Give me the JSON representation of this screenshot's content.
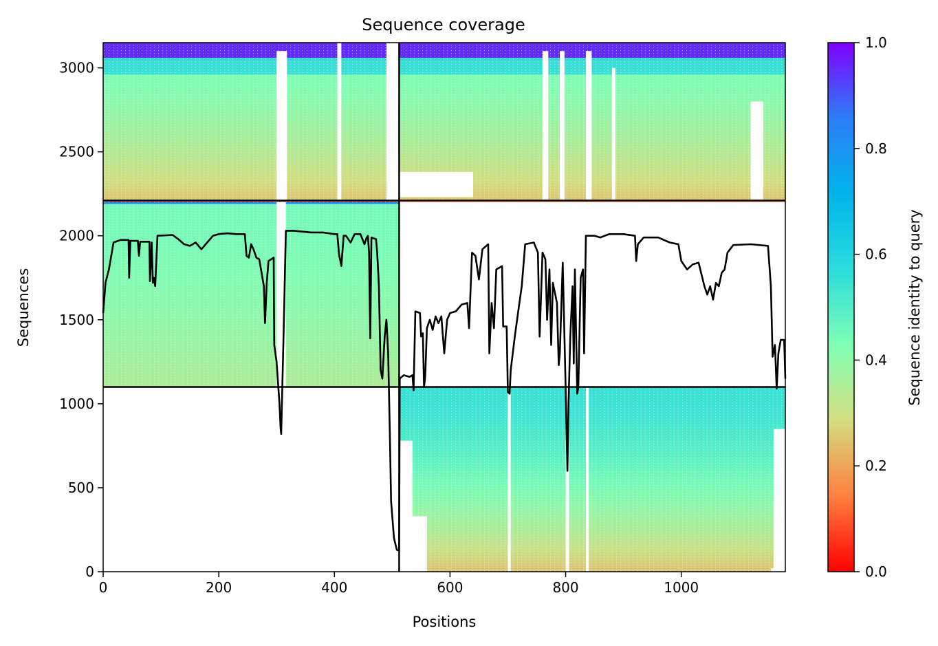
{
  "chart_data": {
    "type": "heatmap",
    "title": "Sequence coverage",
    "xlabel": "Positions",
    "ylabel": "Sequences",
    "xlim": [
      0,
      1180
    ],
    "ylim": [
      0,
      3150
    ],
    "x_ticks": [
      0,
      200,
      400,
      600,
      800,
      1000
    ],
    "y_ticks": [
      0,
      500,
      1000,
      1500,
      2000,
      2500,
      3000
    ],
    "grid": false,
    "colorbar": {
      "label": "Sequence identity to query",
      "range": [
        0.0,
        1.0
      ],
      "ticks": [
        0.0,
        0.2,
        0.4,
        0.6,
        0.8,
        1.0
      ],
      "colormap": "rainbow_r",
      "stops": [
        "#ff0000",
        "#ff8040",
        "#d4dd80",
        "#80ffb4",
        "#2adddd",
        "#00b4eb",
        "#2c7ef7",
        "#8000ff"
      ]
    },
    "boundaries": {
      "chain_split_position": 512,
      "block_split_sequences": [
        1100,
        2210
      ]
    },
    "blocks": [
      {
        "name": "paired",
        "x": [
          0,
          1180
        ],
        "y": [
          2210,
          3150
        ],
        "identity_top": 0.95,
        "identity_bottom": 0.25
      },
      {
        "name": "chain_A_unpaired",
        "x": [
          0,
          512
        ],
        "y": [
          1100,
          2210
        ],
        "identity_top": 0.45,
        "identity_bottom": 0.35
      },
      {
        "name": "chain_B_unpaired",
        "x": [
          512,
          1180
        ],
        "y": [
          0,
          1100
        ],
        "identity_top": 0.55,
        "identity_bottom": 0.25
      }
    ],
    "coverage_line": {
      "color": "#000000",
      "points": [
        [
          0,
          1540
        ],
        [
          4,
          1720
        ],
        [
          10,
          1800
        ],
        [
          18,
          1960
        ],
        [
          30,
          1975
        ],
        [
          44,
          1975
        ],
        [
          45,
          1750
        ],
        [
          47,
          1970
        ],
        [
          60,
          1970
        ],
        [
          62,
          1880
        ],
        [
          64,
          1965
        ],
        [
          80,
          1965
        ],
        [
          81,
          1730
        ],
        [
          84,
          1960
        ],
        [
          86,
          1720
        ],
        [
          88,
          1750
        ],
        [
          90,
          1700
        ],
        [
          94,
          2000
        ],
        [
          120,
          2005
        ],
        [
          130,
          1980
        ],
        [
          140,
          1950
        ],
        [
          150,
          1940
        ],
        [
          160,
          1960
        ],
        [
          170,
          1920
        ],
        [
          180,
          1960
        ],
        [
          190,
          2000
        ],
        [
          200,
          2010
        ],
        [
          215,
          2015
        ],
        [
          230,
          2010
        ],
        [
          245,
          2010
        ],
        [
          248,
          1880
        ],
        [
          252,
          1870
        ],
        [
          256,
          1950
        ],
        [
          260,
          1920
        ],
        [
          265,
          1870
        ],
        [
          270,
          1860
        ],
        [
          278,
          1700
        ],
        [
          280,
          1480
        ],
        [
          283,
          1720
        ],
        [
          286,
          1850
        ],
        [
          295,
          1870
        ],
        [
          296,
          1350
        ],
        [
          300,
          1250
        ],
        [
          305,
          1000
        ],
        [
          307,
          850
        ],
        [
          308,
          820
        ],
        [
          312,
          1400
        ],
        [
          316,
          2030
        ],
        [
          330,
          2030
        ],
        [
          360,
          2020
        ],
        [
          380,
          2020
        ],
        [
          400,
          2010
        ],
        [
          405,
          2010
        ],
        [
          408,
          1890
        ],
        [
          412,
          1820
        ],
        [
          416,
          2000
        ],
        [
          420,
          2000
        ],
        [
          428,
          1960
        ],
        [
          435,
          2010
        ],
        [
          445,
          2010
        ],
        [
          452,
          1950
        ],
        [
          456,
          1990
        ],
        [
          458,
          2000
        ],
        [
          460,
          1900
        ],
        [
          462,
          1390
        ],
        [
          464,
          1990
        ],
        [
          472,
          1980
        ],
        [
          474,
          1900
        ],
        [
          477,
          1700
        ],
        [
          480,
          1200
        ],
        [
          483,
          1150
        ],
        [
          487,
          1400
        ],
        [
          490,
          1500
        ],
        [
          493,
          1300
        ],
        [
          496,
          800
        ],
        [
          498,
          420
        ],
        [
          503,
          200
        ],
        [
          508,
          130
        ],
        [
          512,
          125
        ],
        [
          513,
          1150
        ],
        [
          520,
          1170
        ],
        [
          530,
          1160
        ],
        [
          535,
          1170
        ],
        [
          537,
          1080
        ],
        [
          540,
          1550
        ],
        [
          548,
          1540
        ],
        [
          550,
          1400
        ],
        [
          553,
          1420
        ],
        [
          555,
          1100
        ],
        [
          557,
          1160
        ],
        [
          560,
          1450
        ],
        [
          565,
          1500
        ],
        [
          570,
          1440
        ],
        [
          575,
          1520
        ],
        [
          580,
          1480
        ],
        [
          585,
          1520
        ],
        [
          590,
          1300
        ],
        [
          595,
          1500
        ],
        [
          600,
          1540
        ],
        [
          610,
          1550
        ],
        [
          620,
          1590
        ],
        [
          630,
          1600
        ],
        [
          633,
          1450
        ],
        [
          638,
          1900
        ],
        [
          644,
          1880
        ],
        [
          650,
          1740
        ],
        [
          656,
          1920
        ],
        [
          666,
          1950
        ],
        [
          668,
          1300
        ],
        [
          672,
          1600
        ],
        [
          676,
          1450
        ],
        [
          680,
          1800
        ],
        [
          690,
          1820
        ],
        [
          692,
          1460
        ],
        [
          698,
          1460
        ],
        [
          700,
          1070
        ],
        [
          703,
          1060
        ],
        [
          705,
          1200
        ],
        [
          712,
          1400
        ],
        [
          718,
          1550
        ],
        [
          724,
          1700
        ],
        [
          730,
          1950
        ],
        [
          745,
          1960
        ],
        [
          752,
          1900
        ],
        [
          755,
          1400
        ],
        [
          760,
          1900
        ],
        [
          765,
          1860
        ],
        [
          768,
          1500
        ],
        [
          772,
          1800
        ],
        [
          775,
          1350
        ],
        [
          778,
          1720
        ],
        [
          785,
          1600
        ],
        [
          788,
          1230
        ],
        [
          790,
          1300
        ],
        [
          795,
          1840
        ],
        [
          800,
          1100
        ],
        [
          803,
          600
        ],
        [
          805,
          1000
        ],
        [
          808,
          1400
        ],
        [
          812,
          1700
        ],
        [
          814,
          1240
        ],
        [
          816,
          1800
        ],
        [
          820,
          1060
        ],
        [
          822,
          1100
        ],
        [
          826,
          1750
        ],
        [
          830,
          1800
        ],
        [
          832,
          1300
        ],
        [
          835,
          2000
        ],
        [
          850,
          2000
        ],
        [
          860,
          1990
        ],
        [
          875,
          2010
        ],
        [
          900,
          2010
        ],
        [
          920,
          2000
        ],
        [
          922,
          1850
        ],
        [
          925,
          1950
        ],
        [
          935,
          1990
        ],
        [
          960,
          1990
        ],
        [
          980,
          1960
        ],
        [
          995,
          1950
        ],
        [
          1000,
          1850
        ],
        [
          1010,
          1800
        ],
        [
          1020,
          1830
        ],
        [
          1030,
          1840
        ],
        [
          1040,
          1700
        ],
        [
          1045,
          1650
        ],
        [
          1050,
          1700
        ],
        [
          1055,
          1620
        ],
        [
          1060,
          1720
        ],
        [
          1065,
          1700
        ],
        [
          1070,
          1780
        ],
        [
          1075,
          1800
        ],
        [
          1080,
          1900
        ],
        [
          1090,
          1945
        ],
        [
          1120,
          1950
        ],
        [
          1150,
          1940
        ],
        [
          1155,
          1700
        ],
        [
          1158,
          1280
        ],
        [
          1162,
          1350
        ],
        [
          1165,
          1090
        ],
        [
          1168,
          1300
        ],
        [
          1172,
          1380
        ],
        [
          1178,
          1380
        ],
        [
          1180,
          1150
        ]
      ]
    }
  }
}
